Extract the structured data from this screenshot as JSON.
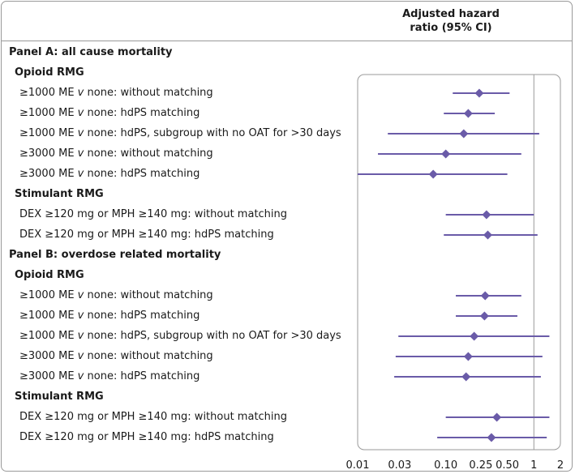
{
  "chart_data": {
    "type": "forest",
    "column_header": [
      "Adjusted hazard",
      "ratio (95% CI)"
    ],
    "x_scale": "log",
    "xlim": [
      0.01,
      2
    ],
    "reference_line": 1,
    "x_ticks": [
      {
        "value": 0.01,
        "label": "0.01"
      },
      {
        "value": 0.03,
        "label": "0.03"
      },
      {
        "value": 0.1,
        "label": "0.10"
      },
      {
        "value": 0.25,
        "label": "0.25"
      },
      {
        "value": 0.5,
        "label": "0.50"
      },
      {
        "value": 1,
        "label": "1"
      },
      {
        "value": 2,
        "label": "2"
      }
    ],
    "marker_color": "#6a5ba8",
    "rows": [
      {
        "kind": "panel",
        "label": "Panel A: all cause mortality"
      },
      {
        "kind": "group",
        "label": "Opioid RMG"
      },
      {
        "kind": "item",
        "pre": "≥1000 ME ",
        "v": "v",
        "label": " none: without matching",
        "est": 0.24,
        "lo": 0.12,
        "hi": 0.53
      },
      {
        "kind": "item",
        "pre": "≥1000 ME ",
        "v": "v",
        "label": " none: hdPS matching",
        "est": 0.18,
        "lo": 0.095,
        "hi": 0.36
      },
      {
        "kind": "item",
        "pre": "≥1000 ME ",
        "v": "v",
        "label": " none: hdPS, subgroup with no OAT for >30 days",
        "est": 0.16,
        "lo": 0.022,
        "hi": 1.15
      },
      {
        "kind": "item",
        "pre": "≥3000 ME ",
        "v": "v",
        "label": " none: without matching",
        "est": 0.1,
        "lo": 0.017,
        "hi": 0.72
      },
      {
        "kind": "item",
        "pre": "≥3000 ME ",
        "v": "v",
        "label": " none: hdPS matching",
        "est": 0.072,
        "lo": 0.01,
        "hi": 0.5
      },
      {
        "kind": "group",
        "label": "Stimulant RMG"
      },
      {
        "kind": "item",
        "label": "DEX ≥120 mg or MPH ≥140 mg: without matching",
        "est": 0.29,
        "lo": 0.1,
        "hi": 1.0
      },
      {
        "kind": "item",
        "label": "DEX ≥120 mg or MPH ≥140 mg: hdPS matching",
        "est": 0.3,
        "lo": 0.095,
        "hi": 1.1
      },
      {
        "kind": "panel",
        "label": "Panel B: overdose related mortality"
      },
      {
        "kind": "group",
        "label": "Opioid RMG"
      },
      {
        "kind": "item",
        "pre": "≥1000 ME ",
        "v": "v",
        "label": " none: without matching",
        "est": 0.28,
        "lo": 0.13,
        "hi": 0.72
      },
      {
        "kind": "item",
        "pre": "≥1000 ME ",
        "v": "v",
        "label": " none: hdPS matching",
        "est": 0.275,
        "lo": 0.13,
        "hi": 0.65
      },
      {
        "kind": "item",
        "pre": "≥1000 ME ",
        "v": "v",
        "label": " none: hdPS, subgroup with no OAT for >30 days",
        "est": 0.21,
        "lo": 0.029,
        "hi": 1.5
      },
      {
        "kind": "item",
        "pre": "≥3000 ME ",
        "v": "v",
        "label": " none: without matching",
        "est": 0.18,
        "lo": 0.027,
        "hi": 1.25
      },
      {
        "kind": "item",
        "pre": "≥3000 ME ",
        "v": "v",
        "label": " none: hdPS matching",
        "est": 0.17,
        "lo": 0.026,
        "hi": 1.2
      },
      {
        "kind": "group",
        "label": "Stimulant RMG"
      },
      {
        "kind": "item",
        "label": "DEX ≥120 mg or MPH ≥140 mg: without matching",
        "est": 0.38,
        "lo": 0.1,
        "hi": 1.5
      },
      {
        "kind": "item",
        "label": "DEX ≥120 mg or MPH ≥140 mg: hdPS matching",
        "est": 0.33,
        "lo": 0.08,
        "hi": 1.4
      }
    ]
  }
}
